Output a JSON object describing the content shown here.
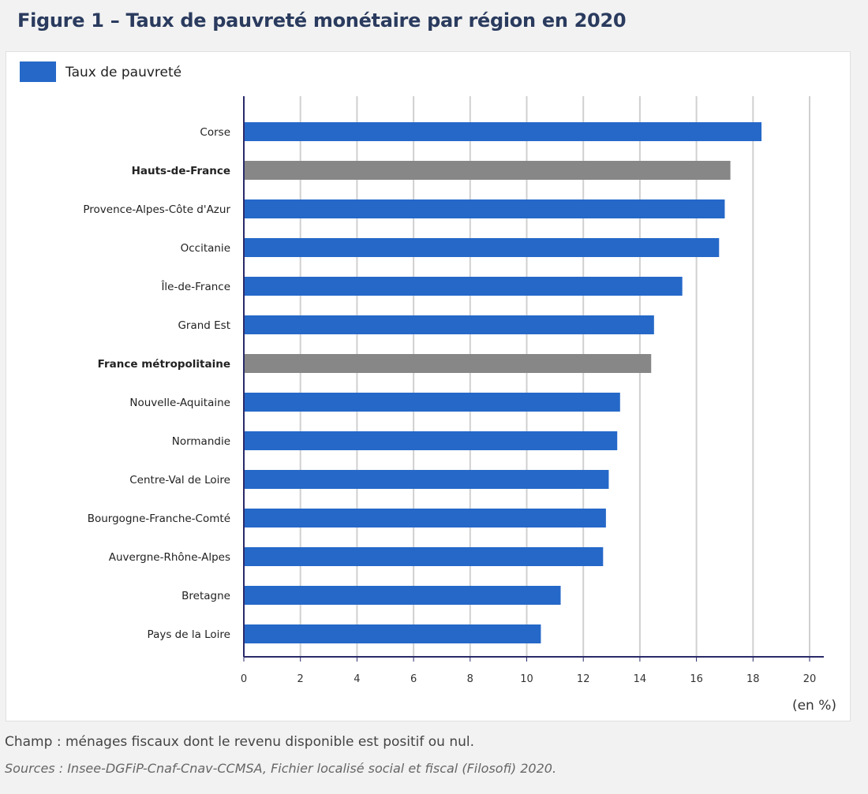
{
  "title": "Figure 1 – Taux de pauvreté monétaire par région en 2020",
  "chart_data": {
    "type": "bar",
    "orientation": "horizontal",
    "categories": [
      "Corse",
      "Hauts-de-France",
      "Provence-Alpes-Côte d'Azur",
      "Occitanie",
      "Île-de-France",
      "Grand Est",
      "France métropolitaine",
      "Nouvelle-Aquitaine",
      "Normandie",
      "Centre-Val de Loire",
      "Bourgogne-Franche-Comté",
      "Auvergne-Rhône-Alpes",
      "Bretagne",
      "Pays de la Loire"
    ],
    "highlighted": [
      "Hauts-de-France",
      "France métropolitaine"
    ],
    "series": [
      {
        "name": "Taux de pauvreté",
        "values": [
          18.3,
          17.2,
          17.0,
          16.8,
          15.5,
          14.5,
          14.4,
          13.3,
          13.2,
          12.9,
          12.8,
          12.7,
          11.2,
          10.5
        ]
      }
    ],
    "xlim": [
      0,
      20.5
    ],
    "xticks": [
      0,
      2,
      4,
      6,
      8,
      10,
      12,
      14,
      16,
      18,
      20
    ],
    "xlabel": "(en %)",
    "grid": true,
    "legend": "top-left",
    "colors": {
      "default": "#2568c8",
      "highlight": "#878787",
      "axis": "#2a2a6a",
      "grid": "#d0d0d0"
    }
  },
  "notes": {
    "champ": "Champ : ménages fiscaux dont le revenu disponible est positif ou nul.",
    "sources": "Sources : Insee-DGFiP-Cnaf-Cnav-CCMSA, Fichier localisé social et fiscal (Filosofi) 2020."
  }
}
